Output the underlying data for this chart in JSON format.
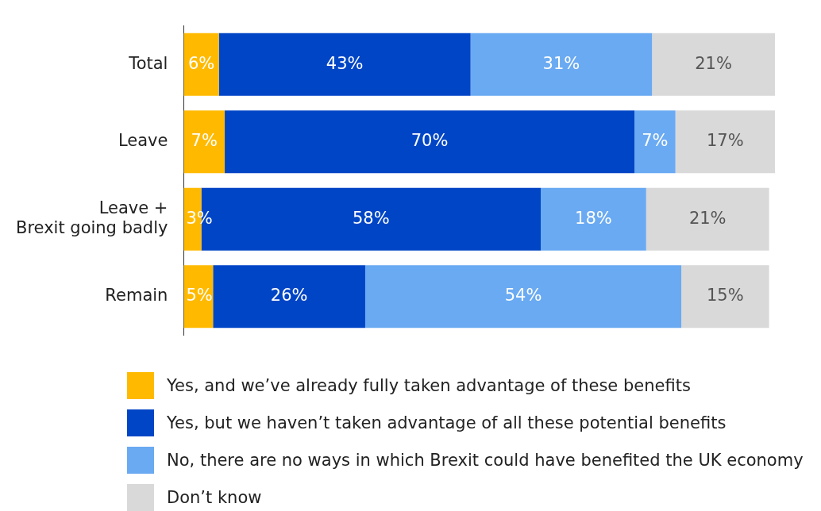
{
  "chart_data": {
    "type": "bar",
    "orientation": "horizontal",
    "stacked": true,
    "categories": [
      "Total",
      "Leave",
      "Leave +\nBrexit going badly",
      "Remain"
    ],
    "series": [
      {
        "name": "Yes, and we’ve already fully taken advantage of these benefits",
        "color": "#ffba00",
        "values": [
          6,
          7,
          3,
          5
        ],
        "value_labels": [
          "6%",
          "7%",
          "3%",
          "5%"
        ]
      },
      {
        "name": "Yes, but we haven’t taken advantage of all these potential benefits",
        "color": "#0045c6",
        "values": [
          43,
          70,
          58,
          26
        ],
        "value_labels": [
          "43%",
          "70%",
          "58%",
          "26%"
        ]
      },
      {
        "name": "No, there are no ways in which Brexit could have benefited the UK economy",
        "color": "#6aaaf2",
        "values": [
          31,
          7,
          18,
          54
        ],
        "value_labels": [
          "31%",
          "7%",
          "18%",
          "54%"
        ]
      },
      {
        "name": "Don’t know",
        "color": "#d9d9d9",
        "values": [
          21,
          17,
          21,
          15
        ],
        "value_labels": [
          "21%",
          "17%",
          "21%",
          "15%"
        ]
      }
    ],
    "tick_labels": "y",
    "legend": "bottom"
  }
}
